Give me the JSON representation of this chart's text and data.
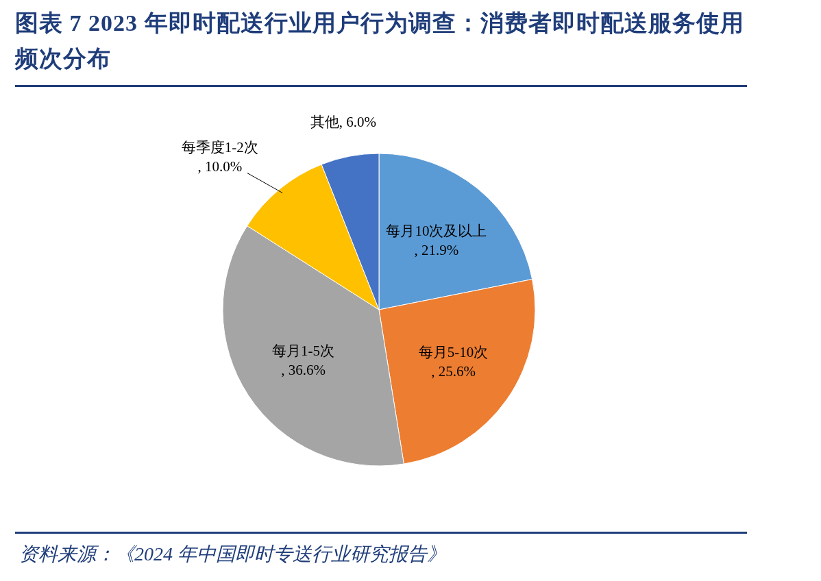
{
  "chart_data": {
    "type": "pie",
    "title": "图表 7   2023 年即时配送行业用户行为调查：消费者即时配送服务使用频次分布",
    "categories": [
      "每月10次及以上",
      "每月5-10次",
      "每月1-5次",
      "每季度1-2次",
      "其他"
    ],
    "values": [
      21.9,
      25.6,
      36.6,
      10.0,
      6.0
    ],
    "colors": [
      "#5b9bd5",
      "#ed7d31",
      "#a5a5a5",
      "#ffc000",
      "#4472c4"
    ],
    "value_labels": [
      ", 21.9%",
      ", 25.6%",
      ", 36.6%",
      ", 10.0%",
      ", 6.0%"
    ],
    "annotations": [
      "资料来源：《2024 年中国即时专送行业研究报告》"
    ]
  }
}
